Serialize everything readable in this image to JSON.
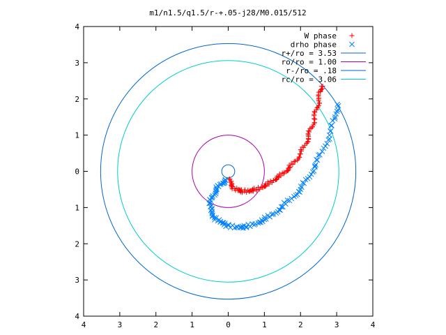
{
  "chart_data": {
    "type": "scatter",
    "title": "m1/n1.5/q1.5/r-+.05-j28/M0.015/512",
    "xlabel": "",
    "ylabel": "",
    "xlim": [
      -4,
      4
    ],
    "ylim": [
      -4,
      4
    ],
    "xtick_values": [
      -4,
      -3,
      -2,
      -1,
      0,
      1,
      2,
      3,
      4
    ],
    "ytick_values": [
      -4,
      -3,
      -2,
      -1,
      0,
      1,
      2,
      3,
      4
    ],
    "xtick_labels": [
      "4",
      "3",
      "2",
      "1",
      "0",
      "1",
      "2",
      "3",
      "4"
    ],
    "ytick_labels": [
      "4",
      "3",
      "2",
      "1",
      "0",
      "1",
      "2",
      "3",
      "4"
    ],
    "grid": false,
    "legend_position": "top-right",
    "series": [
      {
        "name": "W phase",
        "kind": "points",
        "marker": "plus",
        "color": "#ff0000",
        "points": [
          [
            0.02,
            -0.22
          ],
          [
            0.08,
            -0.38
          ],
          [
            0.18,
            -0.48
          ],
          [
            0.3,
            -0.53
          ],
          [
            0.45,
            -0.55
          ],
          [
            0.6,
            -0.54
          ],
          [
            0.78,
            -0.5
          ],
          [
            0.95,
            -0.43
          ],
          [
            1.1,
            -0.35
          ],
          [
            1.25,
            -0.25
          ],
          [
            1.4,
            -0.15
          ],
          [
            1.55,
            -0.03
          ],
          [
            1.7,
            0.1
          ],
          [
            1.85,
            0.28
          ],
          [
            2.0,
            0.48
          ],
          [
            2.12,
            0.72
          ],
          [
            2.22,
            0.96
          ],
          [
            2.3,
            1.2
          ],
          [
            2.38,
            1.45
          ],
          [
            2.44,
            1.7
          ],
          [
            2.5,
            1.95
          ],
          [
            2.55,
            2.2
          ],
          [
            2.58,
            2.35
          ]
        ]
      },
      {
        "name": "drho phase",
        "kind": "points",
        "marker": "cross",
        "color": "#0080ff",
        "points": [
          [
            -0.08,
            -0.25
          ],
          [
            -0.2,
            -0.35
          ],
          [
            -0.32,
            -0.5
          ],
          [
            -0.43,
            -0.68
          ],
          [
            -0.5,
            -0.88
          ],
          [
            -0.48,
            -1.08
          ],
          [
            -0.38,
            -1.28
          ],
          [
            -0.22,
            -1.4
          ],
          [
            0.0,
            -1.5
          ],
          [
            0.25,
            -1.55
          ],
          [
            0.5,
            -1.53
          ],
          [
            0.75,
            -1.45
          ],
          [
            1.0,
            -1.33
          ],
          [
            1.25,
            -1.18
          ],
          [
            1.5,
            -0.98
          ],
          [
            1.75,
            -0.75
          ],
          [
            2.0,
            -0.5
          ],
          [
            2.2,
            -0.2
          ],
          [
            2.4,
            0.15
          ],
          [
            2.6,
            0.55
          ],
          [
            2.8,
            1.0
          ],
          [
            2.95,
            1.45
          ],
          [
            3.02,
            1.85
          ]
        ]
      },
      {
        "name": "r+/ro = 3.53",
        "kind": "circle",
        "radius": 3.53,
        "color": "#0066cc"
      },
      {
        "name": "ro/ro = 1.00",
        "kind": "circle",
        "radius": 1.0,
        "color": "#aa00aa"
      },
      {
        "name": "r-/ro = .18",
        "kind": "circle",
        "radius": 0.18,
        "color": "#0066cc"
      },
      {
        "name": "rc/ro = 3.06",
        "kind": "circle",
        "radius": 3.06,
        "color": "#00cccc"
      }
    ]
  }
}
